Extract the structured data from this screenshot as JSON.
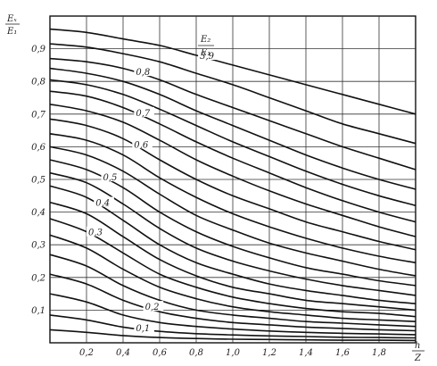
{
  "chart_data": {
    "type": "line",
    "xlim": [
      0,
      2.0
    ],
    "ylim": [
      0,
      1.0
    ],
    "x_ticks": [
      0.2,
      0.4,
      0.6,
      0.8,
      1.0,
      1.2,
      1.4,
      1.6,
      1.8
    ],
    "x_tick_labels": [
      "0,2",
      "0,4",
      "0,6",
      "0,8",
      "1,0",
      "1,2",
      "1,4",
      "1,6",
      "1,8"
    ],
    "y_ticks": [
      0.1,
      0.2,
      0.3,
      0.4,
      0.5,
      0.6,
      0.7,
      0.8,
      0.9
    ],
    "y_tick_labels": [
      "0,1",
      "0,2",
      "0,3",
      "0,4",
      "0,5",
      "0,6",
      "0,7",
      "0,8",
      "0,9"
    ],
    "x_label": {
      "num": "h",
      "den": "Z"
    },
    "y_label": {
      "num": "Eₓ",
      "den": "E₁"
    },
    "param_label": {
      "num": "E₂",
      "den": "E₁"
    },
    "grid": true,
    "series": [
      {
        "label": "3,9",
        "label_x": 0.82,
        "y": [
          0.96,
          0.95,
          0.93,
          0.91,
          0.88,
          0.85,
          0.82,
          0.79,
          0.76,
          0.73,
          0.7
        ]
      },
      {
        "label": "",
        "y": [
          0.915,
          0.905,
          0.885,
          0.86,
          0.825,
          0.79,
          0.75,
          0.71,
          0.67,
          0.64,
          0.61
        ]
      },
      {
        "label": "0,8",
        "label_x": 0.47,
        "y": [
          0.87,
          0.86,
          0.84,
          0.805,
          0.76,
          0.72,
          0.68,
          0.64,
          0.6,
          0.565,
          0.53
        ]
      },
      {
        "label": "",
        "y": [
          0.84,
          0.825,
          0.8,
          0.76,
          0.71,
          0.665,
          0.62,
          0.575,
          0.535,
          0.5,
          0.47
        ]
      },
      {
        "label": "",
        "y": [
          0.805,
          0.79,
          0.76,
          0.715,
          0.665,
          0.615,
          0.57,
          0.525,
          0.485,
          0.45,
          0.42
        ]
      },
      {
        "label": "0,7",
        "label_x": 0.47,
        "y": [
          0.77,
          0.755,
          0.72,
          0.67,
          0.615,
          0.565,
          0.52,
          0.475,
          0.435,
          0.4,
          0.37
        ]
      },
      {
        "label": "",
        "y": [
          0.73,
          0.71,
          0.675,
          0.62,
          0.56,
          0.51,
          0.465,
          0.425,
          0.39,
          0.355,
          0.325
        ]
      },
      {
        "label": "0,6",
        "label_x": 0.46,
        "y": [
          0.685,
          0.665,
          0.625,
          0.56,
          0.5,
          0.45,
          0.41,
          0.37,
          0.34,
          0.31,
          0.285
        ]
      },
      {
        "label": "",
        "y": [
          0.64,
          0.62,
          0.575,
          0.505,
          0.445,
          0.395,
          0.355,
          0.32,
          0.29,
          0.265,
          0.245
        ]
      },
      {
        "label": "",
        "y": [
          0.6,
          0.575,
          0.525,
          0.455,
          0.39,
          0.345,
          0.305,
          0.275,
          0.25,
          0.225,
          0.205
        ]
      },
      {
        "label": "0,5",
        "label_x": 0.29,
        "y": [
          0.56,
          0.53,
          0.475,
          0.4,
          0.34,
          0.295,
          0.26,
          0.23,
          0.21,
          0.19,
          0.175
        ]
      },
      {
        "label": "",
        "y": [
          0.52,
          0.49,
          0.425,
          0.35,
          0.29,
          0.25,
          0.22,
          0.195,
          0.175,
          0.16,
          0.145
        ]
      },
      {
        "label": "0,4",
        "label_x": 0.25,
        "y": [
          0.48,
          0.445,
          0.375,
          0.3,
          0.245,
          0.21,
          0.18,
          0.16,
          0.145,
          0.13,
          0.12
        ]
      },
      {
        "label": "",
        "y": [
          0.43,
          0.395,
          0.325,
          0.255,
          0.205,
          0.17,
          0.15,
          0.13,
          0.12,
          0.11,
          0.1
        ]
      },
      {
        "label": "0,3",
        "label_x": 0.21,
        "y": [
          0.38,
          0.34,
          0.275,
          0.21,
          0.17,
          0.14,
          0.12,
          0.105,
          0.095,
          0.09,
          0.08
        ]
      },
      {
        "label": "",
        "y": [
          0.33,
          0.29,
          0.225,
          0.17,
          0.135,
          0.11,
          0.095,
          0.085,
          0.075,
          0.07,
          0.065
        ]
      },
      {
        "label": "",
        "y": [
          0.27,
          0.235,
          0.175,
          0.13,
          0.1,
          0.085,
          0.075,
          0.065,
          0.06,
          0.055,
          0.05
        ]
      },
      {
        "label": "0,2",
        "label_x": 0.52,
        "y": [
          0.21,
          0.18,
          0.13,
          0.095,
          0.075,
          0.062,
          0.055,
          0.048,
          0.044,
          0.04,
          0.037
        ]
      },
      {
        "label": "",
        "y": [
          0.15,
          0.125,
          0.085,
          0.062,
          0.05,
          0.042,
          0.036,
          0.032,
          0.029,
          0.027,
          0.025
        ]
      },
      {
        "label": "0,1",
        "label_x": 0.47,
        "y": [
          0.085,
          0.07,
          0.048,
          0.035,
          0.028,
          0.024,
          0.021,
          0.019,
          0.017,
          0.016,
          0.015
        ]
      },
      {
        "label": "",
        "y": [
          0.04,
          0.032,
          0.022,
          0.016,
          0.013,
          0.011,
          0.01,
          0.009,
          0.008,
          0.008,
          0.007
        ]
      }
    ],
    "x": [
      0,
      0.2,
      0.4,
      0.6,
      0.8,
      1.0,
      1.2,
      1.4,
      1.6,
      1.8,
      2.0
    ]
  }
}
